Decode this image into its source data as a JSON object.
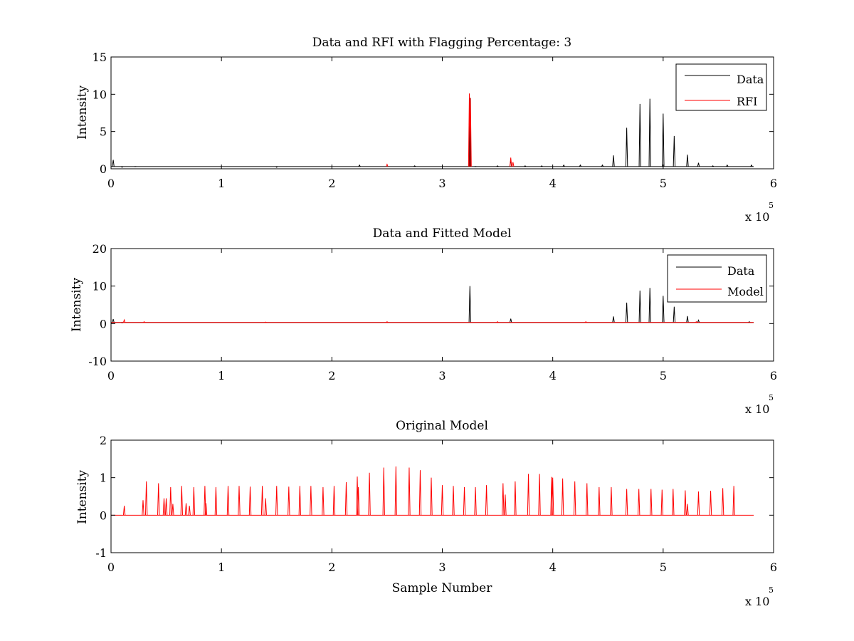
{
  "figure": {
    "background": "#ffffff",
    "data_color": "#000000",
    "rfi_color": "#ff0000",
    "model_color": "#ff0000"
  },
  "chart_data": [
    {
      "type": "line",
      "title": "Data and RFI with Flagging Percentage: 3",
      "xlabel": "",
      "ylabel": "Intensity",
      "xlim": [
        0,
        6
      ],
      "ylim": [
        0,
        15
      ],
      "x_ticks": [
        "0",
        "1",
        "2",
        "3",
        "4",
        "5",
        "6"
      ],
      "y_ticks": [
        "0",
        "5",
        "10",
        "15"
      ],
      "x_exponent": {
        "base": "x 10",
        "power": "5"
      },
      "grid": false,
      "legend": {
        "position": "top-right",
        "entries": [
          {
            "label": "Data",
            "color": "#000000"
          },
          {
            "label": "RFI",
            "color": "#ff0000"
          }
        ]
      },
      "series": [
        {
          "name": "Data",
          "color": "#000000",
          "baseline": 0.3,
          "peaks": [
            [
              0.02,
              1.2
            ],
            [
              0.1,
              0.2
            ],
            [
              0.22,
              0.3
            ],
            [
              1.5,
              0.2
            ],
            [
              2.25,
              0.5
            ],
            [
              2.75,
              0.4
            ],
            [
              3.25,
              9.5
            ],
            [
              3.3,
              0.3
            ],
            [
              3.5,
              0.4
            ],
            [
              3.62,
              1.2
            ],
            [
              3.75,
              0.4
            ],
            [
              3.9,
              0.4
            ],
            [
              4.1,
              0.5
            ],
            [
              4.25,
              0.5
            ],
            [
              4.45,
              0.5
            ],
            [
              4.55,
              1.8
            ],
            [
              4.67,
              5.5
            ],
            [
              4.79,
              8.7
            ],
            [
              4.88,
              9.4
            ],
            [
              5.0,
              7.4
            ],
            [
              5.1,
              4.4
            ],
            [
              5.22,
              1.9
            ],
            [
              5.32,
              0.8
            ],
            [
              5.45,
              0.4
            ],
            [
              5.58,
              0.5
            ],
            [
              5.8,
              0.5
            ]
          ]
        },
        {
          "name": "RFI",
          "color": "#ff0000",
          "baseline": null,
          "peaks": [
            [
              2.5,
              0.6
            ],
            [
              3.245,
              10.1
            ],
            [
              3.255,
              9.5
            ],
            [
              3.62,
              1.5
            ],
            [
              3.64,
              0.9
            ]
          ]
        }
      ]
    },
    {
      "type": "line",
      "title": "Data and Fitted Model",
      "xlabel": "",
      "ylabel": "Intensity",
      "xlim": [
        0,
        6
      ],
      "ylim": [
        -10,
        20
      ],
      "x_ticks": [
        "0",
        "1",
        "2",
        "3",
        "4",
        "5",
        "6"
      ],
      "y_ticks": [
        "-10",
        "0",
        "10",
        "20"
      ],
      "x_exponent": {
        "base": "x 10",
        "power": "5"
      },
      "grid": false,
      "legend": {
        "position": "top-right",
        "entries": [
          {
            "label": "Data",
            "color": "#000000"
          },
          {
            "label": "Model",
            "color": "#ff0000"
          }
        ]
      },
      "series": [
        {
          "name": "Data",
          "color": "#000000",
          "baseline": 0.3,
          "peaks": [
            [
              0.02,
              1.2
            ],
            [
              0.1,
              0.2
            ],
            [
              3.25,
              10.0
            ],
            [
              3.62,
              1.3
            ],
            [
              4.55,
              1.9
            ],
            [
              4.67,
              5.6
            ],
            [
              4.79,
              8.8
            ],
            [
              4.88,
              9.5
            ],
            [
              5.0,
              7.4
            ],
            [
              5.1,
              4.5
            ],
            [
              5.22,
              2.0
            ],
            [
              5.32,
              0.9
            ],
            [
              5.78,
              0.5
            ]
          ]
        },
        {
          "name": "Model",
          "color": "#ff0000",
          "baseline": 0.3,
          "peaks": [
            [
              0.12,
              1.0
            ],
            [
              0.3,
              0.5
            ],
            [
              1.4,
              0.4
            ],
            [
              2.5,
              0.5
            ],
            [
              3.5,
              0.5
            ],
            [
              4.3,
              0.5
            ],
            [
              5.3,
              0.5
            ]
          ]
        }
      ]
    },
    {
      "type": "line",
      "title": "Original Model",
      "xlabel": "Sample Number",
      "ylabel": "Intensity",
      "xlim": [
        0,
        6
      ],
      "ylim": [
        -1,
        2
      ],
      "x_ticks": [
        "0",
        "1",
        "2",
        "3",
        "4",
        "5",
        "6"
      ],
      "y_ticks": [
        "-1",
        "0",
        "1",
        "2"
      ],
      "x_exponent": {
        "base": "x 10",
        "power": "5"
      },
      "grid": false,
      "legend": null,
      "series": [
        {
          "name": "",
          "color": "#ff0000",
          "baseline": 0,
          "peaks": [
            [
              0.12,
              0.25
            ],
            [
              0.29,
              0.4
            ],
            [
              0.32,
              0.9
            ],
            [
              0.43,
              0.85
            ],
            [
              0.48,
              0.45
            ],
            [
              0.5,
              0.45
            ],
            [
              0.54,
              0.75
            ],
            [
              0.56,
              0.3
            ],
            [
              0.64,
              0.78
            ],
            [
              0.68,
              0.32
            ],
            [
              0.71,
              0.25
            ],
            [
              0.75,
              0.75
            ],
            [
              0.85,
              0.78
            ],
            [
              0.86,
              0.32
            ],
            [
              0.95,
              0.75
            ],
            [
              1.06,
              0.78
            ],
            [
              1.16,
              0.78
            ],
            [
              1.26,
              0.76
            ],
            [
              1.37,
              0.78
            ],
            [
              1.4,
              0.45
            ],
            [
              1.5,
              0.78
            ],
            [
              1.61,
              0.76
            ],
            [
              1.71,
              0.78
            ],
            [
              1.81,
              0.78
            ],
            [
              1.92,
              0.75
            ],
            [
              2.02,
              0.78
            ],
            [
              2.13,
              0.88
            ],
            [
              2.23,
              1.03
            ],
            [
              2.24,
              0.75
            ],
            [
              2.34,
              1.13
            ],
            [
              2.47,
              1.27
            ],
            [
              2.58,
              1.3
            ],
            [
              2.7,
              1.27
            ],
            [
              2.8,
              1.2
            ],
            [
              2.9,
              1.0
            ],
            [
              3.0,
              0.8
            ],
            [
              3.1,
              0.78
            ],
            [
              3.2,
              0.75
            ],
            [
              3.3,
              0.75
            ],
            [
              3.4,
              0.8
            ],
            [
              3.55,
              0.85
            ],
            [
              3.57,
              0.55
            ],
            [
              3.66,
              0.9
            ],
            [
              3.78,
              1.1
            ],
            [
              3.88,
              1.1
            ],
            [
              3.99,
              1.02
            ],
            [
              4.0,
              1.0
            ],
            [
              4.09,
              0.98
            ],
            [
              4.2,
              0.9
            ],
            [
              4.31,
              0.85
            ],
            [
              4.42,
              0.75
            ],
            [
              4.53,
              0.75
            ],
            [
              4.67,
              0.7
            ],
            [
              4.78,
              0.7
            ],
            [
              4.89,
              0.7
            ],
            [
              4.99,
              0.68
            ],
            [
              5.09,
              0.7
            ],
            [
              5.2,
              0.66
            ],
            [
              5.22,
              0.3
            ],
            [
              5.32,
              0.63
            ],
            [
              5.43,
              0.65
            ],
            [
              5.54,
              0.72
            ],
            [
              5.64,
              0.78
            ]
          ]
        }
      ]
    }
  ]
}
